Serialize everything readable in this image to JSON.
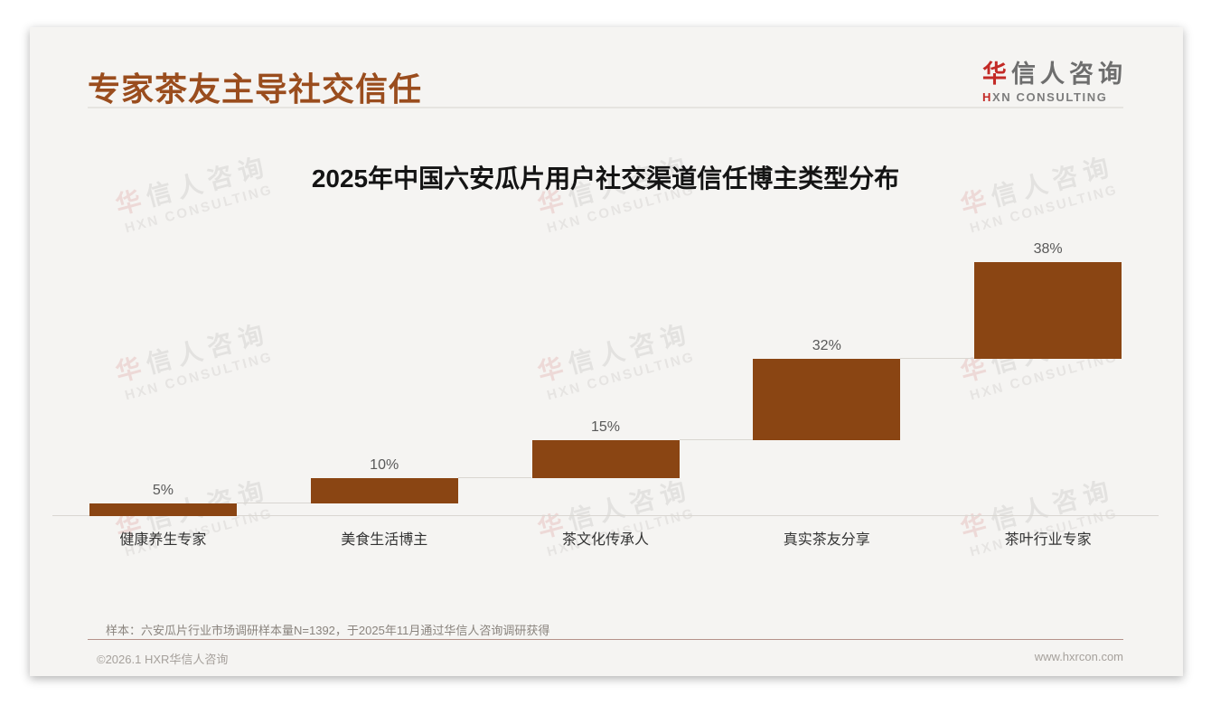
{
  "page": {
    "title": "专家茶友主导社交信任",
    "logo": {
      "brand_first": "华",
      "brand_rest": "信人咨询",
      "sub_first": "H",
      "sub_rest": "XN CONSULTING"
    },
    "note": "样本：六安瓜片行业市场调研样本量N=1392，于2025年11月通过华信人咨询调研获得",
    "footer": {
      "left": "©2026.1 HXR华信人咨询",
      "right": "www.hxrcon.com"
    },
    "watermark": {
      "line1_first": "华",
      "line1_rest": "信人咨询",
      "line2": "HXN CONSULTING"
    }
  },
  "colors": {
    "bar": "#8a4513",
    "page_title": "#9a4d1e",
    "accent_red": "#c32a26",
    "axis_line": "#d9d6d1",
    "footer_rule": "#b5928a",
    "card_bg": "#f5f4f2"
  },
  "chart_data": {
    "type": "bar",
    "variant": "stepped-waterfall",
    "title": "2025年中国六安瓜片用户社交渠道信任博主类型分布",
    "categories": [
      "健康养生专家",
      "美食生活博主",
      "茶文化传承人",
      "真实茶友分享",
      "茶叶行业专家"
    ],
    "values": [
      5,
      10,
      15,
      32,
      38
    ],
    "value_labels": [
      "5%",
      "10%",
      "15%",
      "32%",
      "38%"
    ],
    "cumulative_start": [
      0,
      5,
      15,
      30,
      62
    ],
    "ylim": [
      0,
      100
    ],
    "grid": false,
    "legend": "none",
    "bar_color": "#8a4513",
    "connectors": true
  }
}
